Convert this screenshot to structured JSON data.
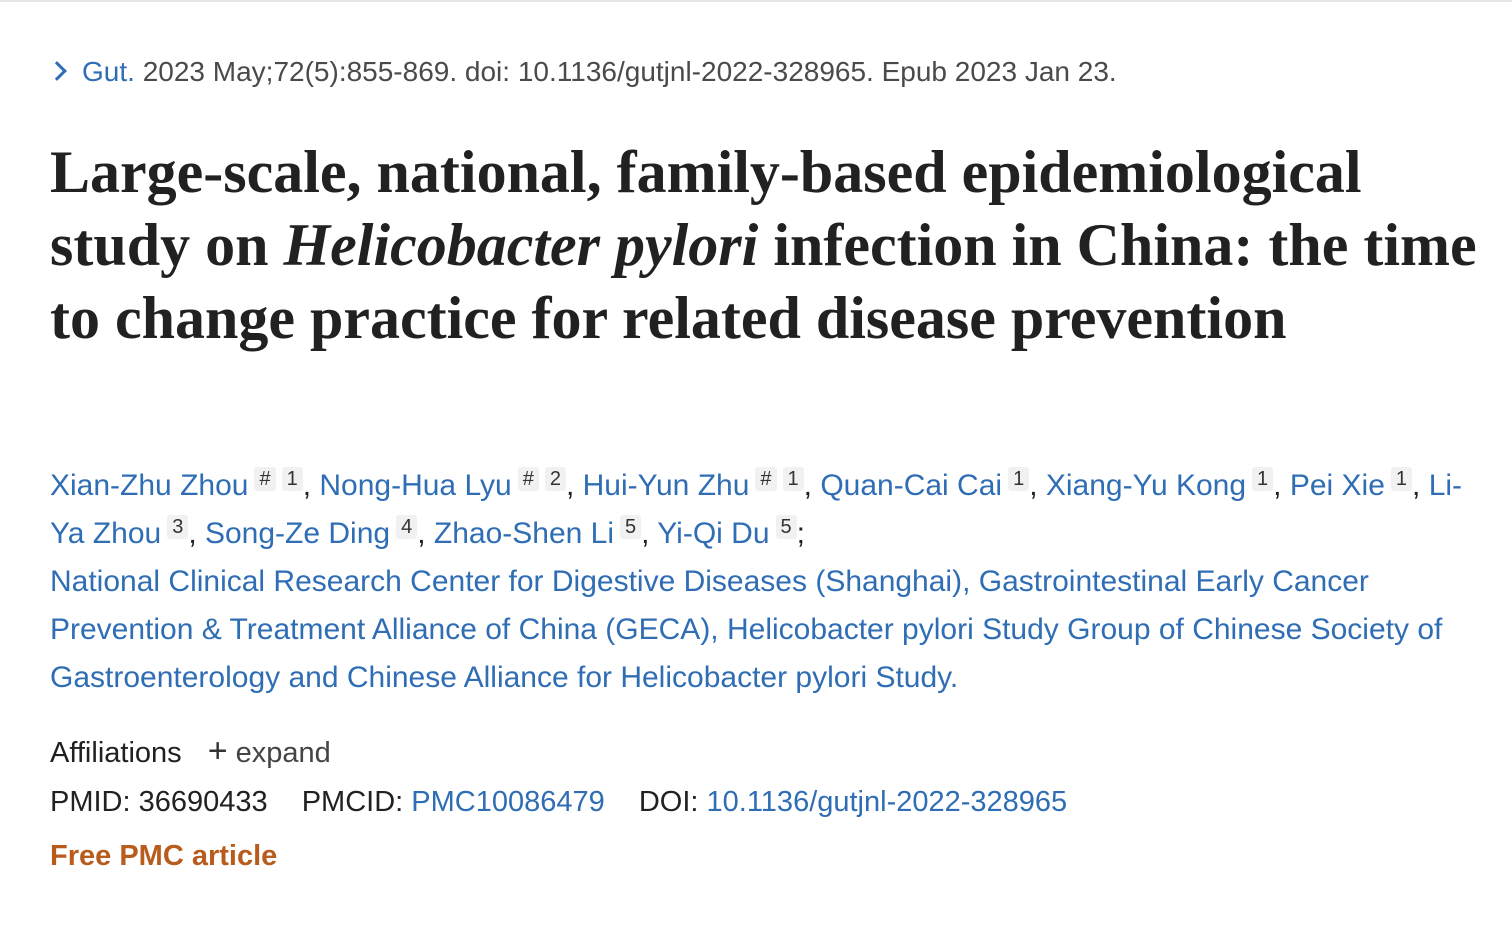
{
  "citation": {
    "journal": "Gut.",
    "details": "2023 May;72(5):855-869. doi: 10.1136/gutjnl-2022-328965. Epub 2023 Jan 23."
  },
  "title": {
    "part1": "Large-scale, national, family-based epidemiological study on ",
    "italic": "Helicobacter pylori",
    "part2": " infection in China: the time to change practice for related disease prevention"
  },
  "authors": [
    {
      "name": "Xian-Zhu Zhou",
      "marks": [
        "#",
        "1"
      ]
    },
    {
      "name": "Nong-Hua Lyu",
      "marks": [
        "#",
        "2"
      ]
    },
    {
      "name": "Hui-Yun Zhu",
      "marks": [
        "#",
        "1"
      ]
    },
    {
      "name": "Quan-Cai Cai",
      "marks": [
        "1"
      ]
    },
    {
      "name": "Xiang-Yu Kong",
      "marks": [
        "1"
      ]
    },
    {
      "name": "Pei Xie",
      "marks": [
        "1"
      ]
    },
    {
      "name": "Li-Ya Zhou",
      "marks": [
        "3"
      ]
    },
    {
      "name": "Song-Ze Ding",
      "marks": [
        "4"
      ]
    },
    {
      "name": "Zhao-Shen Li",
      "marks": [
        "5"
      ]
    },
    {
      "name": "Yi-Qi Du",
      "marks": [
        "5"
      ]
    }
  ],
  "group_author": "National Clinical Research Center for Digestive Diseases (Shanghai), Gastrointestinal Early Cancer Prevention & Treatment Alliance of China (GECA), Helicobacter pylori Study Group of Chinese Society of Gastroenterology and Chinese Alliance for Helicobacter pylori Study.",
  "affiliations": {
    "label": "Affiliations",
    "expand_label": "expand"
  },
  "ids": {
    "pmid_label": "PMID:",
    "pmid": "36690433",
    "pmcid_label": "PMCID:",
    "pmcid": "PMC10086479",
    "doi_label": "DOI:",
    "doi": "10.1136/gutjnl-2022-328965"
  },
  "free_label": "Free PMC article",
  "colors": {
    "link": "#2f6db5",
    "free": "#b85c1d",
    "text": "#212121"
  }
}
